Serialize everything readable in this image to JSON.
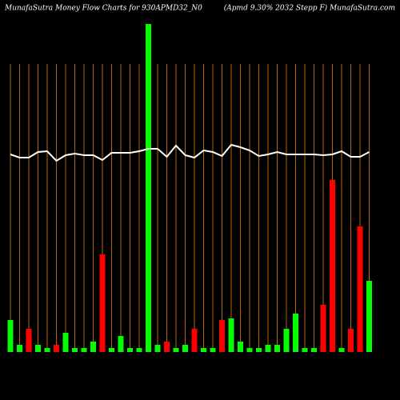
{
  "chart_data": {
    "type": "bar",
    "title": "MunafaSutra  Money Flow  Charts for 930APMD32_N0",
    "subtitle": "(Apmd 9.30% 2032  Stepp F) MunafaSutra.com",
    "values": [
      40,
      9,
      29,
      9,
      5,
      9,
      24,
      5,
      5,
      13,
      122,
      5,
      20,
      5,
      5,
      410,
      9,
      13,
      5,
      9,
      29,
      5,
      5,
      40,
      42,
      13,
      5,
      5,
      9,
      9,
      29,
      48,
      5,
      5,
      59,
      215,
      5,
      29,
      157,
      89
    ],
    "colors": [
      "#00ff00",
      "#00ff00",
      "#ff0000",
      "#00ff00",
      "#00ff00",
      "#ff0000",
      "#00ff00",
      "#00ff00",
      "#00ff00",
      "#00ff00",
      "#ff0000",
      "#00ff00",
      "#00ff00",
      "#00ff00",
      "#00ff00",
      "#00ff00",
      "#00ff00",
      "#ff0000",
      "#00ff00",
      "#00ff00",
      "#ff0000",
      "#00ff00",
      "#00ff00",
      "#ff0000",
      "#00ff00",
      "#00ff00",
      "#00ff00",
      "#00ff00",
      "#00ff00",
      "#00ff00",
      "#00ff00",
      "#00ff00",
      "#00ff00",
      "#00ff00",
      "#ff0000",
      "#ff0000",
      "#00ff00",
      "#ff0000",
      "#ff0000",
      "#00ff00"
    ],
    "line": {
      "color": "#ffffff",
      "values": [
        247,
        243,
        243,
        250,
        251,
        239,
        246,
        248,
        246,
        246,
        240,
        249,
        249,
        249,
        251,
        254,
        254,
        244,
        258,
        246,
        243,
        252,
        250,
        245,
        259,
        256,
        252,
        245,
        247,
        250,
        247,
        247,
        247,
        247,
        246,
        247,
        251,
        244,
        244,
        250
      ]
    },
    "ylim": [
      0,
      440
    ],
    "gridline_color": "#b8660b"
  }
}
